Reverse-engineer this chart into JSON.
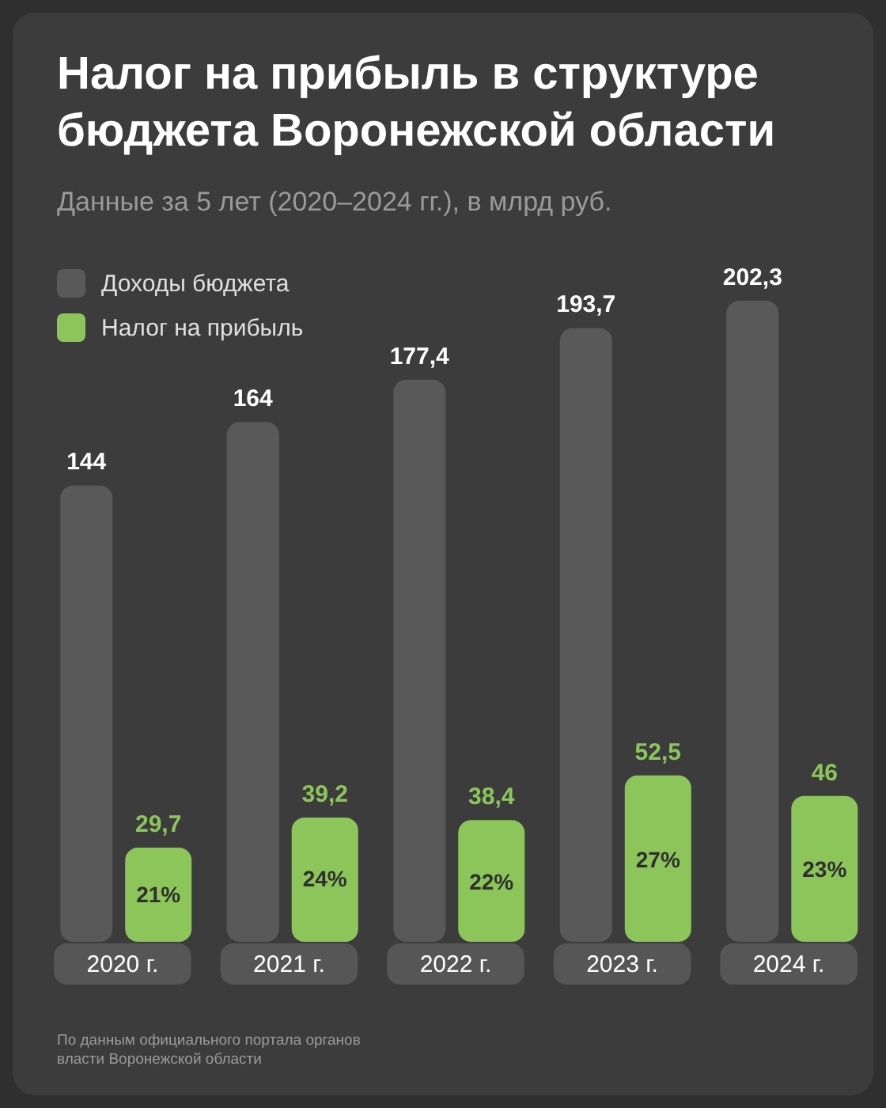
{
  "chart_data": {
    "type": "bar",
    "title": "Налог на прибыль в структуре бюджета Воронежской области",
    "subtitle": "Данные за 5 лет (2020–2024 гг.), в млрд руб.",
    "categories": [
      "2020 г.",
      "2021 г.",
      "2022 г.",
      "2023 г.",
      "2024 г."
    ],
    "series": [
      {
        "name": "Доходы бюджета",
        "color": "#595959",
        "values": [
          144,
          164,
          177.4,
          193.7,
          202.3
        ],
        "value_labels": [
          "144",
          "164",
          "177,4",
          "193,7",
          "202,3"
        ]
      },
      {
        "name": "Налог на прибыль",
        "color": "#8cc65a",
        "values": [
          29.7,
          39.2,
          38.4,
          52.5,
          46
        ],
        "value_labels": [
          "29,7",
          "39,2",
          "38,4",
          "52,5",
          "46"
        ]
      }
    ],
    "legend": "top left",
    "annotations": [
      {
        "text": "21%",
        "x": "2020 г.",
        "y": 15
      },
      {
        "text": "24%",
        "x": "2021 г.",
        "y": 20
      },
      {
        "text": "22%",
        "x": "2022 г.",
        "y": 19
      },
      {
        "text": "27%",
        "x": "2023 г.",
        "y": 26
      },
      {
        "text": "23%",
        "x": "2024 г.",
        "y": 23
      },
      "По данным официального портала органов власти Воронежской области"
    ]
  }
}
